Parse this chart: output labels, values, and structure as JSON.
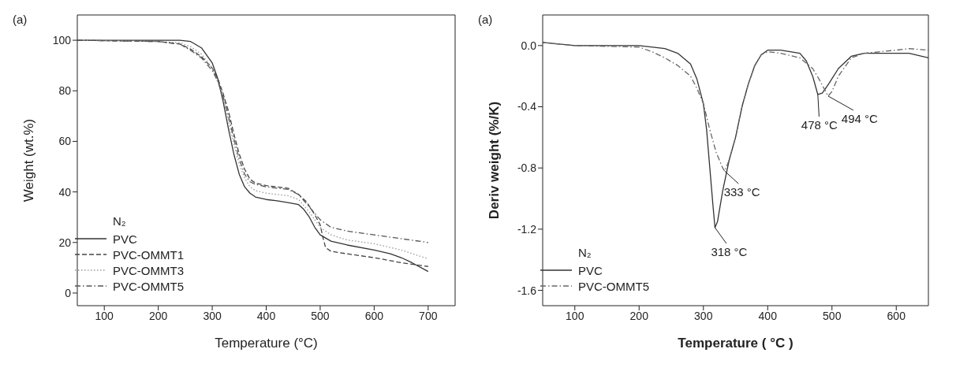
{
  "chart_data": [
    {
      "type": "line",
      "title": "(a)",
      "xlabel": "Temperature (°C)",
      "ylabel": "Weight (wt.%)",
      "xlim": [
        50,
        750
      ],
      "xticks": [
        100,
        200,
        300,
        400,
        500,
        600,
        700
      ],
      "ylim": [
        -5,
        110
      ],
      "yticks": [
        0,
        20,
        40,
        60,
        80,
        100
      ],
      "legend": "bottom left",
      "legend_title": "N₂",
      "series": [
        {
          "name": "PVC",
          "color": "#333333",
          "line_style": "solid",
          "x": [
            50,
            100,
            200,
            240,
            260,
            280,
            300,
            310,
            320,
            330,
            340,
            350,
            360,
            370,
            380,
            400,
            420,
            440,
            460,
            470,
            480,
            490,
            500,
            520,
            550,
            600,
            630,
            650,
            670,
            700
          ],
          "values": [
            100,
            100,
            100,
            100,
            99.5,
            97,
            91,
            85,
            76,
            65,
            55,
            47,
            42,
            39.5,
            38,
            37,
            36.5,
            35.8,
            35,
            33,
            30,
            26,
            23,
            20.5,
            19,
            17,
            15.5,
            14,
            12,
            8.5
          ]
        },
        {
          "name": "PVC-OMMT1",
          "color": "#444444",
          "line_style": "dashed",
          "x": [
            50,
            200,
            240,
            260,
            280,
            300,
            310,
            320,
            330,
            340,
            350,
            360,
            370,
            380,
            400,
            440,
            460,
            475,
            490,
            500,
            505,
            510,
            520,
            550,
            600,
            650,
            700
          ],
          "values": [
            100,
            99.5,
            98.5,
            96.5,
            93.5,
            89,
            85,
            79,
            72,
            63,
            55,
            49,
            45,
            43.5,
            42.5,
            41.5,
            39,
            36,
            31,
            27,
            22,
            18,
            16.5,
            15.5,
            14,
            12,
            10.5
          ]
        },
        {
          "name": "PVC-OMMT3",
          "color": "#999999",
          "line_style": "dotted",
          "x": [
            50,
            200,
            240,
            260,
            280,
            300,
            320,
            330,
            340,
            350,
            360,
            370,
            380,
            400,
            440,
            460,
            480,
            500,
            520,
            550,
            600,
            650,
            700
          ],
          "values": [
            100,
            99.5,
            99,
            97.5,
            94.5,
            89,
            78,
            68,
            59,
            51,
            45.5,
            42,
            40.5,
            39.5,
            38.5,
            37,
            32,
            26,
            23,
            21,
            19.5,
            17,
            13.5
          ]
        },
        {
          "name": "PVC-OMMT5",
          "color": "#555555",
          "line_style": "dashdot",
          "x": [
            50,
            200,
            240,
            260,
            280,
            300,
            310,
            320,
            330,
            340,
            350,
            360,
            370,
            380,
            400,
            440,
            460,
            480,
            500,
            520,
            550,
            600,
            650,
            700
          ],
          "values": [
            100,
            99.5,
            98.5,
            96,
            93,
            88,
            84,
            78,
            70,
            61,
            53,
            47,
            44,
            43,
            42,
            41,
            39,
            34,
            29,
            26,
            24.5,
            23,
            21.5,
            20
          ]
        }
      ]
    },
    {
      "type": "line",
      "title": "(a)",
      "xlabel": "Temperature ( °C )",
      "ylabel": "Deriv weight (%/K)",
      "xlim": [
        50,
        650
      ],
      "xticks": [
        100,
        200,
        300,
        400,
        500,
        600
      ],
      "ylim": [
        -1.7,
        0.2
      ],
      "yticks": [
        {
          "value": 0,
          "label": "0.0"
        },
        -0.4,
        -0.8,
        -1.2,
        -1.6
      ],
      "legend": "bottom left",
      "legend_title": "N₂",
      "series": [
        {
          "name": "PVC",
          "color": "#333333",
          "line_style": "solid",
          "x": [
            50,
            100,
            200,
            240,
            260,
            280,
            290,
            300,
            305,
            310,
            315,
            318,
            322,
            330,
            340,
            350,
            360,
            370,
            380,
            390,
            400,
            420,
            450,
            460,
            470,
            478,
            485,
            495,
            510,
            530,
            550,
            600,
            620,
            650
          ],
          "values": [
            0.02,
            0,
            0,
            -0.02,
            -0.05,
            -0.12,
            -0.22,
            -0.38,
            -0.55,
            -0.8,
            -1.05,
            -1.19,
            -1.15,
            -0.95,
            -0.75,
            -0.6,
            -0.4,
            -0.25,
            -0.13,
            -0.06,
            -0.03,
            -0.03,
            -0.05,
            -0.1,
            -0.2,
            -0.32,
            -0.31,
            -0.25,
            -0.15,
            -0.07,
            -0.05,
            -0.05,
            -0.05,
            -0.08
          ]
        },
        {
          "name": "PVC-OMMT5",
          "color": "#666666",
          "line_style": "dashdot",
          "x": [
            50,
            100,
            200,
            220,
            240,
            260,
            280,
            290,
            300,
            310,
            320,
            330,
            333,
            340,
            350,
            360,
            370,
            380,
            390,
            400,
            420,
            450,
            470,
            480,
            494,
            500,
            510,
            530,
            550,
            600,
            620,
            650
          ],
          "values": [
            0.02,
            0,
            -0.01,
            -0.04,
            -0.08,
            -0.13,
            -0.2,
            -0.28,
            -0.38,
            -0.55,
            -0.7,
            -0.8,
            -0.82,
            -0.75,
            -0.6,
            -0.4,
            -0.25,
            -0.13,
            -0.06,
            -0.04,
            -0.05,
            -0.08,
            -0.15,
            -0.22,
            -0.33,
            -0.3,
            -0.2,
            -0.08,
            -0.05,
            -0.03,
            -0.02,
            -0.03
          ]
        }
      ],
      "annotations": [
        {
          "text": "318 °C",
          "x": 318,
          "y": -1.19
        },
        {
          "text": "333 °C",
          "x": 333,
          "y": -0.82
        },
        {
          "text": "478 °C",
          "x": 478,
          "y": -0.32
        },
        {
          "text": "494 °C",
          "x": 494,
          "y": -0.33
        }
      ]
    }
  ]
}
